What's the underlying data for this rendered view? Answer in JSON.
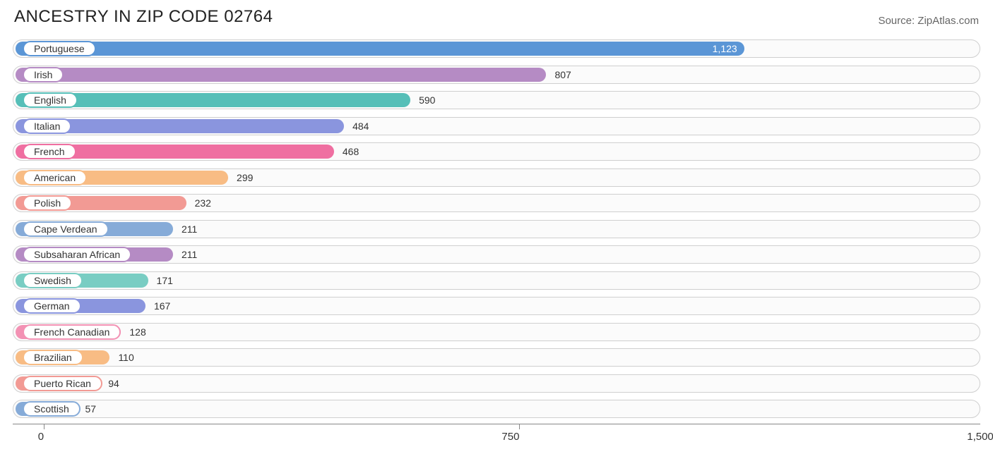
{
  "title": "ANCESTRY IN ZIP CODE 02764",
  "source": "Source: ZipAtlas.com",
  "chart": {
    "type": "bar",
    "orientation": "horizontal",
    "background_color": "#ffffff",
    "track_border_color": "#cfcfcf",
    "track_bg_color": "#fbfbfb",
    "title_fontsize": 24,
    "source_fontsize": 15,
    "label_fontsize": 14,
    "tick_fontsize": 15,
    "xlim": [
      -45,
      1500
    ],
    "x_ticks": [
      0,
      750,
      1500
    ],
    "x_tick_labels": [
      "0",
      "750",
      "1,500"
    ],
    "series": [
      {
        "label": "Portuguese",
        "value": 1123,
        "value_text": "1,123",
        "color": "#5b96d6",
        "label_on_bar": true
      },
      {
        "label": "Irish",
        "value": 807,
        "value_text": "807",
        "color": "#b58bc4",
        "label_on_bar": false
      },
      {
        "label": "English",
        "value": 590,
        "value_text": "590",
        "color": "#56bfb8",
        "label_on_bar": false
      },
      {
        "label": "Italian",
        "value": 484,
        "value_text": "484",
        "color": "#8a95de",
        "label_on_bar": false
      },
      {
        "label": "French",
        "value": 468,
        "value_text": "468",
        "color": "#ef6fa1",
        "label_on_bar": false
      },
      {
        "label": "American",
        "value": 299,
        "value_text": "299",
        "color": "#f8bc84",
        "label_on_bar": false
      },
      {
        "label": "Polish",
        "value": 232,
        "value_text": "232",
        "color": "#f29a94",
        "label_on_bar": false
      },
      {
        "label": "Cape Verdean",
        "value": 211,
        "value_text": "211",
        "color": "#86abd8",
        "label_on_bar": false
      },
      {
        "label": "Subsaharan African",
        "value": 211,
        "value_text": "211",
        "color": "#b58bc4",
        "label_on_bar": false
      },
      {
        "label": "Swedish",
        "value": 171,
        "value_text": "171",
        "color": "#79cdc3",
        "label_on_bar": false
      },
      {
        "label": "German",
        "value": 167,
        "value_text": "167",
        "color": "#8a95de",
        "label_on_bar": false
      },
      {
        "label": "French Canadian",
        "value": 128,
        "value_text": "128",
        "color": "#f392b4",
        "label_on_bar": false
      },
      {
        "label": "Brazilian",
        "value": 110,
        "value_text": "110",
        "color": "#f8bc84",
        "label_on_bar": false
      },
      {
        "label": "Puerto Rican",
        "value": 94,
        "value_text": "94",
        "color": "#f29a94",
        "label_on_bar": false
      },
      {
        "label": "Scottish",
        "value": 57,
        "value_text": "57",
        "color": "#86abd8",
        "label_on_bar": false
      }
    ]
  }
}
